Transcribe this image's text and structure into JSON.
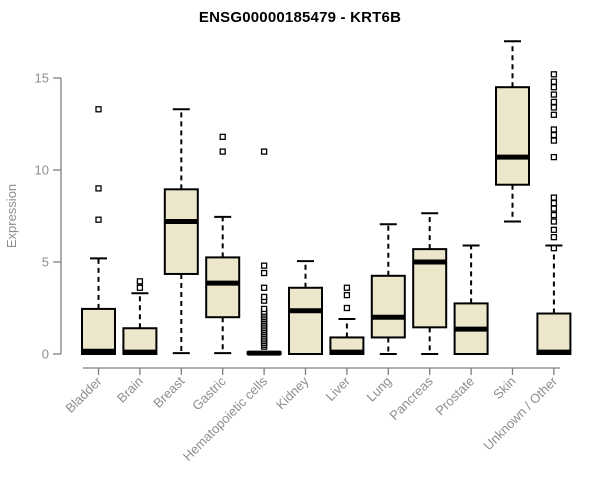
{
  "colors": {
    "background": "#ffffff",
    "box_fill": "#ECE6CB",
    "box_stroke": "#000000",
    "median": "#000000",
    "whisker": "#000000",
    "outlier_stroke": "#000000",
    "outlier_fill": "#ffffff",
    "axis": "#7f7f7f",
    "tick_label": "#8e8e8e",
    "title": "#000000"
  },
  "chart_data": {
    "type": "boxplot",
    "title": "ENSG00000185479 - KRT6B",
    "ylabel": "Expression",
    "xlabel": "",
    "yticks": [
      0,
      5,
      10,
      15
    ],
    "ylim": [
      -0.6,
      17.6
    ],
    "grid": false,
    "legend": false,
    "whisker_style": "dashed",
    "outlier_marker": "open-square",
    "categories": [
      "Bladder",
      "Brain",
      "Breast",
      "Gastric",
      "Hematopoietic cells",
      "Kidney",
      "Liver",
      "Lung",
      "Pancreas",
      "Prostate",
      "Skin",
      "Unknown / Other"
    ],
    "series": [
      {
        "label": "Bladder",
        "whislo": 0,
        "q1": 0,
        "median": 0.15,
        "q3": 2.45,
        "whishi": 5.2,
        "outliers": [
          7.3,
          9.0,
          13.3
        ]
      },
      {
        "label": "Brain",
        "whislo": 0,
        "q1": 0,
        "median": 0.1,
        "q3": 1.4,
        "whishi": 3.3,
        "outliers": [
          3.6,
          3.95
        ]
      },
      {
        "label": "Breast",
        "whislo": 0.05,
        "q1": 4.35,
        "median": 7.2,
        "q3": 8.95,
        "whishi": 13.3,
        "outliers": []
      },
      {
        "label": "Gastric",
        "whislo": 0.05,
        "q1": 2.0,
        "median": 3.85,
        "q3": 5.25,
        "whishi": 7.45,
        "outliers": [
          11.0,
          11.8
        ]
      },
      {
        "label": "Hematopoietic cells",
        "whislo": 0,
        "q1": 0,
        "median": 0.05,
        "q3": 0.1,
        "whishi": 0.1,
        "outliers": [
          0.4,
          0.5,
          0.6,
          0.7,
          0.8,
          0.9,
          1.0,
          1.1,
          1.2,
          1.3,
          1.4,
          1.5,
          1.6,
          1.7,
          1.8,
          1.9,
          2.0,
          2.1,
          2.2,
          2.3,
          2.45,
          2.9,
          3.1,
          3.6,
          4.4,
          4.8,
          11.0
        ]
      },
      {
        "label": "Kidney",
        "whislo": 0,
        "q1": 0,
        "median": 2.35,
        "q3": 3.6,
        "whishi": 5.05,
        "outliers": []
      },
      {
        "label": "Liver",
        "whislo": 0,
        "q1": 0,
        "median": 0.1,
        "q3": 0.9,
        "whishi": 1.9,
        "outliers": [
          2.5,
          3.2,
          3.6
        ]
      },
      {
        "label": "Lung",
        "whislo": 0,
        "q1": 0.9,
        "median": 2.0,
        "q3": 4.25,
        "whishi": 7.05,
        "outliers": []
      },
      {
        "label": "Pancreas",
        "whislo": 0,
        "q1": 1.45,
        "median": 5.0,
        "q3": 5.7,
        "whishi": 7.65,
        "outliers": []
      },
      {
        "label": "Prostate",
        "whislo": 0,
        "q1": 0,
        "median": 1.35,
        "q3": 2.75,
        "whishi": 5.9,
        "outliers": []
      },
      {
        "label": "Skin",
        "whislo": 7.2,
        "q1": 9.2,
        "median": 10.7,
        "q3": 14.5,
        "whishi": 17.0,
        "outliers": []
      },
      {
        "label": "Unknown / Other",
        "whislo": 0,
        "q1": 0,
        "median": 0.1,
        "q3": 2.2,
        "whishi": 5.9,
        "outliers": [
          5.75,
          6.35,
          6.75,
          7.2,
          7.55,
          7.9,
          8.2,
          8.5,
          10.7,
          11.6,
          11.9,
          12.2,
          13.0,
          13.4,
          13.7,
          14.1,
          14.5,
          14.8,
          15.2
        ]
      }
    ]
  }
}
